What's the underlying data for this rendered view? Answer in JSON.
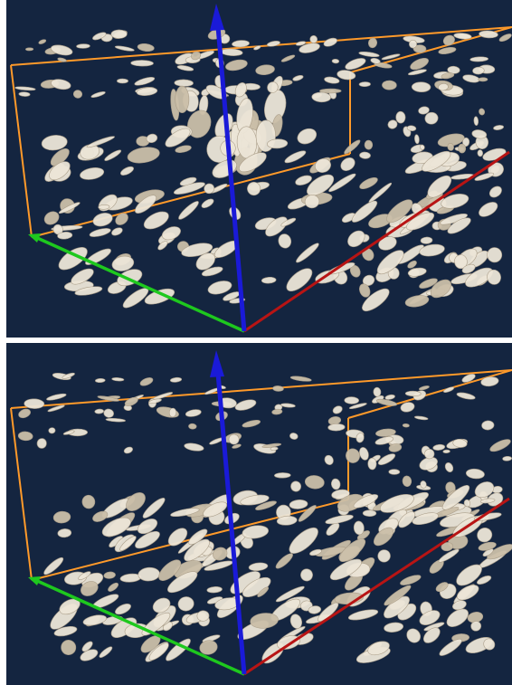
{
  "figure": {
    "panels": [
      {
        "id": "top"
      },
      {
        "id": "bottom"
      }
    ]
  },
  "colors": {
    "background": "#142540",
    "isosurface": "#ede6d8",
    "isosurface_shade": "#b9ad98",
    "box_edges": "#ff9a2a",
    "axis_x": "#b81414",
    "axis_y": "#1ec81e",
    "axis_z": "#1a1ad8"
  },
  "icons": [
    "x-axis-arrow",
    "y-axis-arrow",
    "z-axis-arrow"
  ]
}
